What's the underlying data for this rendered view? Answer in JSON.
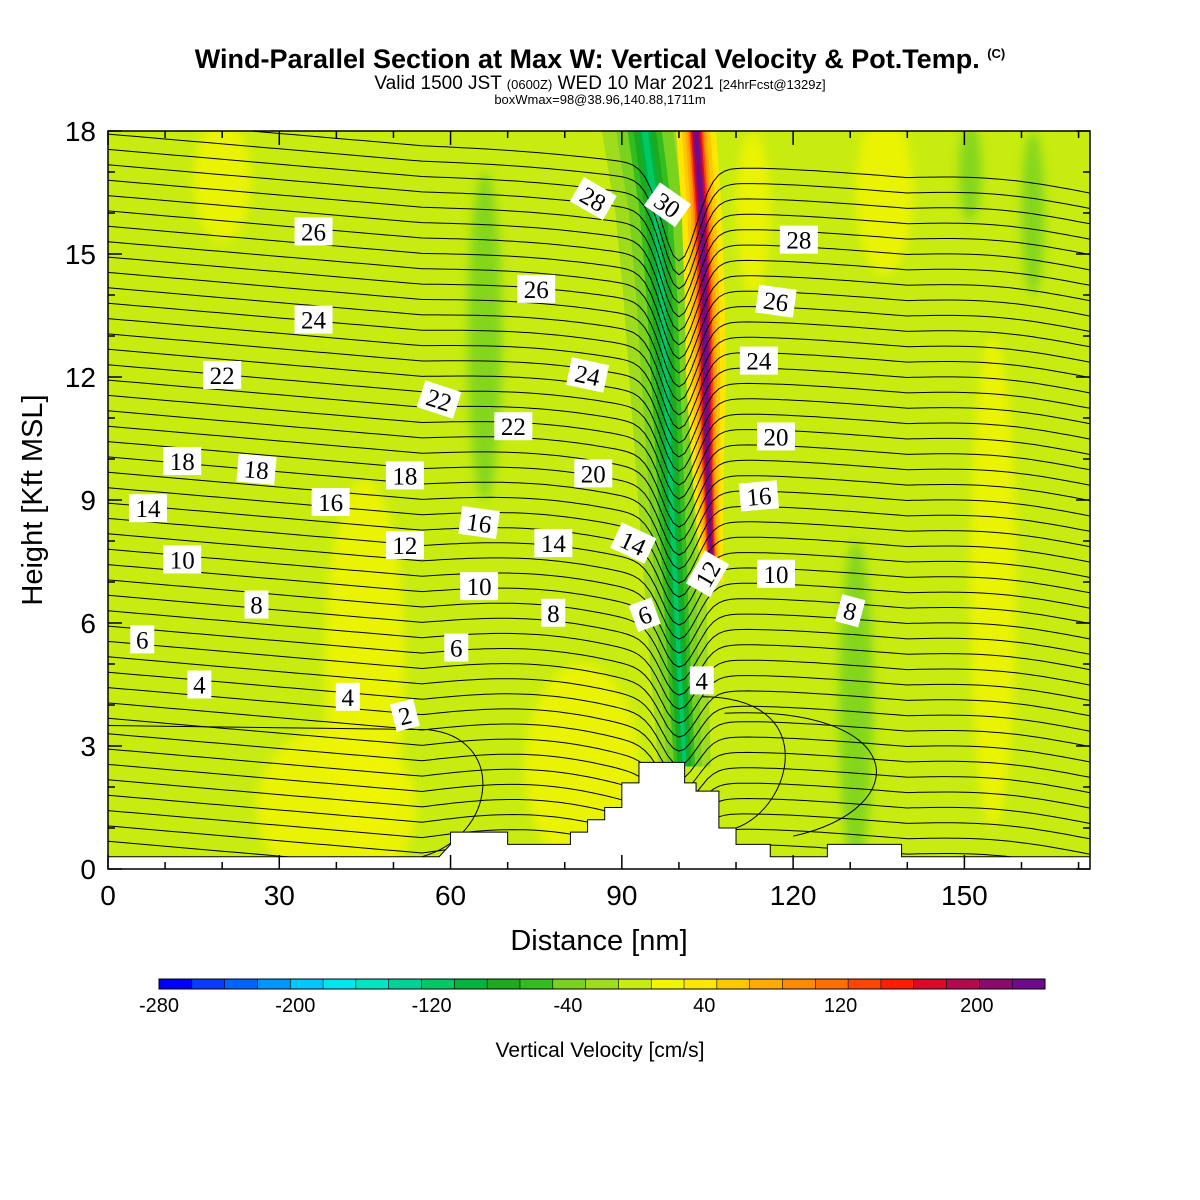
{
  "title": {
    "main": "Wind-Parallel Section at Max W: Vertical Velocity & Pot.Temp.",
    "copyright": "(C)",
    "valid_prefix": "Valid 1500 JST",
    "valid_utc": "(0600Z)",
    "valid_date": "WED 10 Mar 2021",
    "forecast": "[24hrFcst@1329z]",
    "box_info": "boxWmax=98@38.96,140.88,1711m"
  },
  "chart_data": {
    "type": "heatmap",
    "xlabel": "Distance [nm]",
    "ylabel": "Height [Kft MSL]",
    "xlim": [
      0,
      172
    ],
    "ylim": [
      0,
      18
    ],
    "x_ticks": [
      0,
      30,
      60,
      90,
      120,
      150
    ],
    "y_ticks": [
      0,
      3,
      6,
      9,
      12,
      15,
      18
    ],
    "colorbar": {
      "label": "Vertical Velocity [cm/s]",
      "range": [
        -280,
        240
      ],
      "step": 20,
      "tick_values": [
        -280,
        -200,
        -120,
        -40,
        40,
        120,
        200
      ],
      "colors": [
        "#0000ff",
        "#0a3cff",
        "#0064ff",
        "#0096ff",
        "#00c8ff",
        "#00e6f0",
        "#00e6c0",
        "#00d296",
        "#00c864",
        "#00b43c",
        "#1eaa1e",
        "#32be1e",
        "#78d21e",
        "#a0dc1e",
        "#c8ec10",
        "#f0f500",
        "#ffe600",
        "#ffc800",
        "#ffaa00",
        "#ff8c00",
        "#ff6e00",
        "#ff4600",
        "#ff1e00",
        "#dc0a28",
        "#b40a50",
        "#8c0a6e",
        "#6e0a8c"
      ]
    },
    "updraft_axis": {
      "x": [
        103,
        104,
        104.5,
        105,
        105.5,
        106
      ],
      "y": [
        18,
        16,
        14,
        10,
        8,
        6.8
      ]
    },
    "downdraft_axis": {
      "x": [
        94,
        96,
        97,
        98,
        99,
        100,
        101
      ],
      "y": [
        18,
        16,
        14,
        11,
        8,
        5,
        2.5
      ]
    },
    "terrain": {
      "x": [
        58,
        60,
        60,
        70,
        70,
        75,
        75,
        81,
        81,
        84,
        84,
        87,
        87,
        90,
        90,
        93,
        93,
        101,
        101,
        103,
        103,
        107,
        107,
        110,
        110,
        116,
        116,
        126,
        126,
        139,
        139
      ],
      "y": [
        0.3,
        0.6,
        0.9,
        0.9,
        0.6,
        0.6,
        0.6,
        0.6,
        0.9,
        0.9,
        1.2,
        1.2,
        1.5,
        1.5,
        2.1,
        2.1,
        2.6,
        2.6,
        2.1,
        2.1,
        1.9,
        1.9,
        1.0,
        1.0,
        0.6,
        0.6,
        0.3,
        0.3,
        0.6,
        0.6,
        0.3
      ]
    },
    "theta_levels": [
      2,
      4,
      6,
      8,
      10,
      12,
      14,
      16,
      18,
      20,
      22,
      24,
      26,
      28,
      30
    ],
    "contour_labels": [
      {
        "text": "2",
        "x": 52,
        "y": 3.75,
        "rot": -14
      },
      {
        "text": "4",
        "x": 16,
        "y": 4.5,
        "rot": 0
      },
      {
        "text": "4",
        "x": 42,
        "y": 4.2,
        "rot": 0
      },
      {
        "text": "4",
        "x": 104,
        "y": 4.6,
        "rot": 0
      },
      {
        "text": "6",
        "x": 6,
        "y": 5.6,
        "rot": 0
      },
      {
        "text": "6",
        "x": 61,
        "y": 5.4,
        "rot": 0
      },
      {
        "text": "6",
        "x": 94,
        "y": 6.2,
        "rot": -20
      },
      {
        "text": "8",
        "x": 26,
        "y": 6.45,
        "rot": 0
      },
      {
        "text": "8",
        "x": 78,
        "y": 6.25,
        "rot": 0
      },
      {
        "text": "8",
        "x": 130,
        "y": 6.3,
        "rot": 15
      },
      {
        "text": "10",
        "x": 13,
        "y": 7.55,
        "rot": 0
      },
      {
        "text": "10",
        "x": 65,
        "y": 6.9,
        "rot": 0
      },
      {
        "text": "10",
        "x": 117,
        "y": 7.2,
        "rot": 0
      },
      {
        "text": "12",
        "x": 52,
        "y": 7.9,
        "rot": 0
      },
      {
        "text": "12",
        "x": 105,
        "y": 7.2,
        "rot": -60
      },
      {
        "text": "14",
        "x": 7,
        "y": 8.8,
        "rot": 0
      },
      {
        "text": "14",
        "x": 78,
        "y": 7.95,
        "rot": 0
      },
      {
        "text": "14",
        "x": 92,
        "y": 7.95,
        "rot": 25
      },
      {
        "text": "16",
        "x": 39,
        "y": 8.95,
        "rot": 0
      },
      {
        "text": "16",
        "x": 65,
        "y": 8.45,
        "rot": 8
      },
      {
        "text": "16",
        "x": 114,
        "y": 9.1,
        "rot": -5
      },
      {
        "text": "18",
        "x": 13,
        "y": 9.95,
        "rot": 0
      },
      {
        "text": "18",
        "x": 26,
        "y": 9.75,
        "rot": 5
      },
      {
        "text": "18",
        "x": 52,
        "y": 9.6,
        "rot": 0
      },
      {
        "text": "20",
        "x": 85,
        "y": 9.65,
        "rot": 0
      },
      {
        "text": "20",
        "x": 117,
        "y": 10.55,
        "rot": 0
      },
      {
        "text": "22",
        "x": 20,
        "y": 12.05,
        "rot": 0
      },
      {
        "text": "22",
        "x": 58,
        "y": 11.45,
        "rot": 18
      },
      {
        "text": "22",
        "x": 71,
        "y": 10.8,
        "rot": 0
      },
      {
        "text": "24",
        "x": 36,
        "y": 13.4,
        "rot": 0
      },
      {
        "text": "24",
        "x": 84,
        "y": 12.05,
        "rot": 12
      },
      {
        "text": "24",
        "x": 114,
        "y": 12.4,
        "rot": 0
      },
      {
        "text": "26",
        "x": 36,
        "y": 15.55,
        "rot": 0
      },
      {
        "text": "26",
        "x": 75,
        "y": 14.15,
        "rot": 0
      },
      {
        "text": "26",
        "x": 117,
        "y": 13.85,
        "rot": 8
      },
      {
        "text": "28",
        "x": 85,
        "y": 16.35,
        "rot": 30
      },
      {
        "text": "28",
        "x": 121,
        "y": 15.35,
        "rot": 0
      },
      {
        "text": "30",
        "x": 98,
        "y": 16.2,
        "rot": 35
      }
    ]
  }
}
